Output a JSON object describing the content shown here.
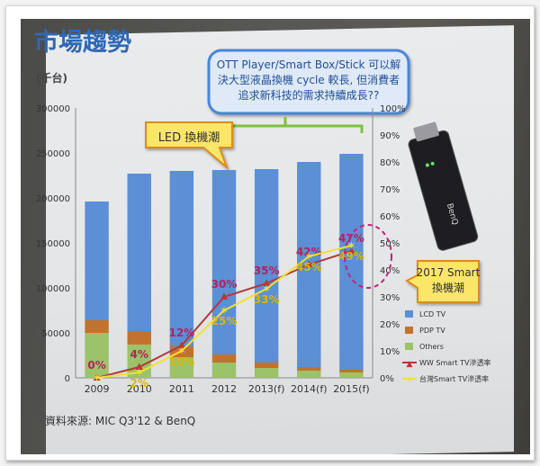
{
  "slide": {
    "title": "市場趨勢",
    "unit": "(千台)",
    "source": "資料來源: MIC Q3'12 & BenQ",
    "callout_top": "OTT Player/Smart Box/Stick 可以解\n決大型液晶換機 cycle 較長, 但消費者\n追求新科技的需求持續成長??",
    "callout_led": "LED 換機潮",
    "callout_2017": "2017 Smart\n換機潮",
    "device_brand": "BenQ"
  },
  "chart_data": {
    "type": "bar",
    "categories": [
      "2009",
      "2010",
      "2011",
      "2012",
      "2013(f)",
      "2014(f)",
      "2015(f)"
    ],
    "series": [
      {
        "name": "LCD TV",
        "kind": "bar",
        "axis": "left",
        "color": "#5b8fd6",
        "values": [
          132000,
          175000,
          195000,
          205000,
          215000,
          228000,
          240000
        ]
      },
      {
        "name": "PDP TV",
        "kind": "bar",
        "axis": "left",
        "color": "#c1722f",
        "values": [
          14000,
          15000,
          12000,
          9000,
          6000,
          4000,
          3000
        ]
      },
      {
        "name": "Others",
        "kind": "bar",
        "axis": "left",
        "color": "#9cc26a",
        "values": [
          50000,
          37000,
          23000,
          17000,
          11000,
          8000,
          6000
        ]
      },
      {
        "name": "WW Smart TV滲透率",
        "kind": "line",
        "axis": "right",
        "color": "#b23a3a",
        "marker": "triangle",
        "values": [
          0,
          4,
          12,
          30,
          35,
          42,
          47
        ],
        "labels": [
          "0%",
          "4%",
          "12%",
          "30%",
          "35%",
          "42%",
          "47%"
        ]
      },
      {
        "name": "台灣Smart TV滲透率",
        "kind": "line",
        "axis": "right",
        "color": "#f2e32a",
        "marker": "star",
        "values": [
          0,
          2,
          10,
          25,
          33,
          45,
          49
        ],
        "labels": [
          "",
          "2%",
          "10%",
          "25%",
          "33%",
          "45%",
          "49%"
        ]
      }
    ],
    "ylim": [
      0,
      300000
    ],
    "yticks": [
      "0",
      "50000",
      "100000",
      "150000",
      "200000",
      "250000",
      "300000"
    ],
    "y2lim": [
      0,
      100
    ],
    "y2ticks": [
      "0%",
      "10%",
      "20%",
      "30%",
      "40%",
      "50%",
      "60%",
      "70%",
      "80%",
      "90%",
      "100%"
    ],
    "legend_position": "right",
    "grid": false
  }
}
